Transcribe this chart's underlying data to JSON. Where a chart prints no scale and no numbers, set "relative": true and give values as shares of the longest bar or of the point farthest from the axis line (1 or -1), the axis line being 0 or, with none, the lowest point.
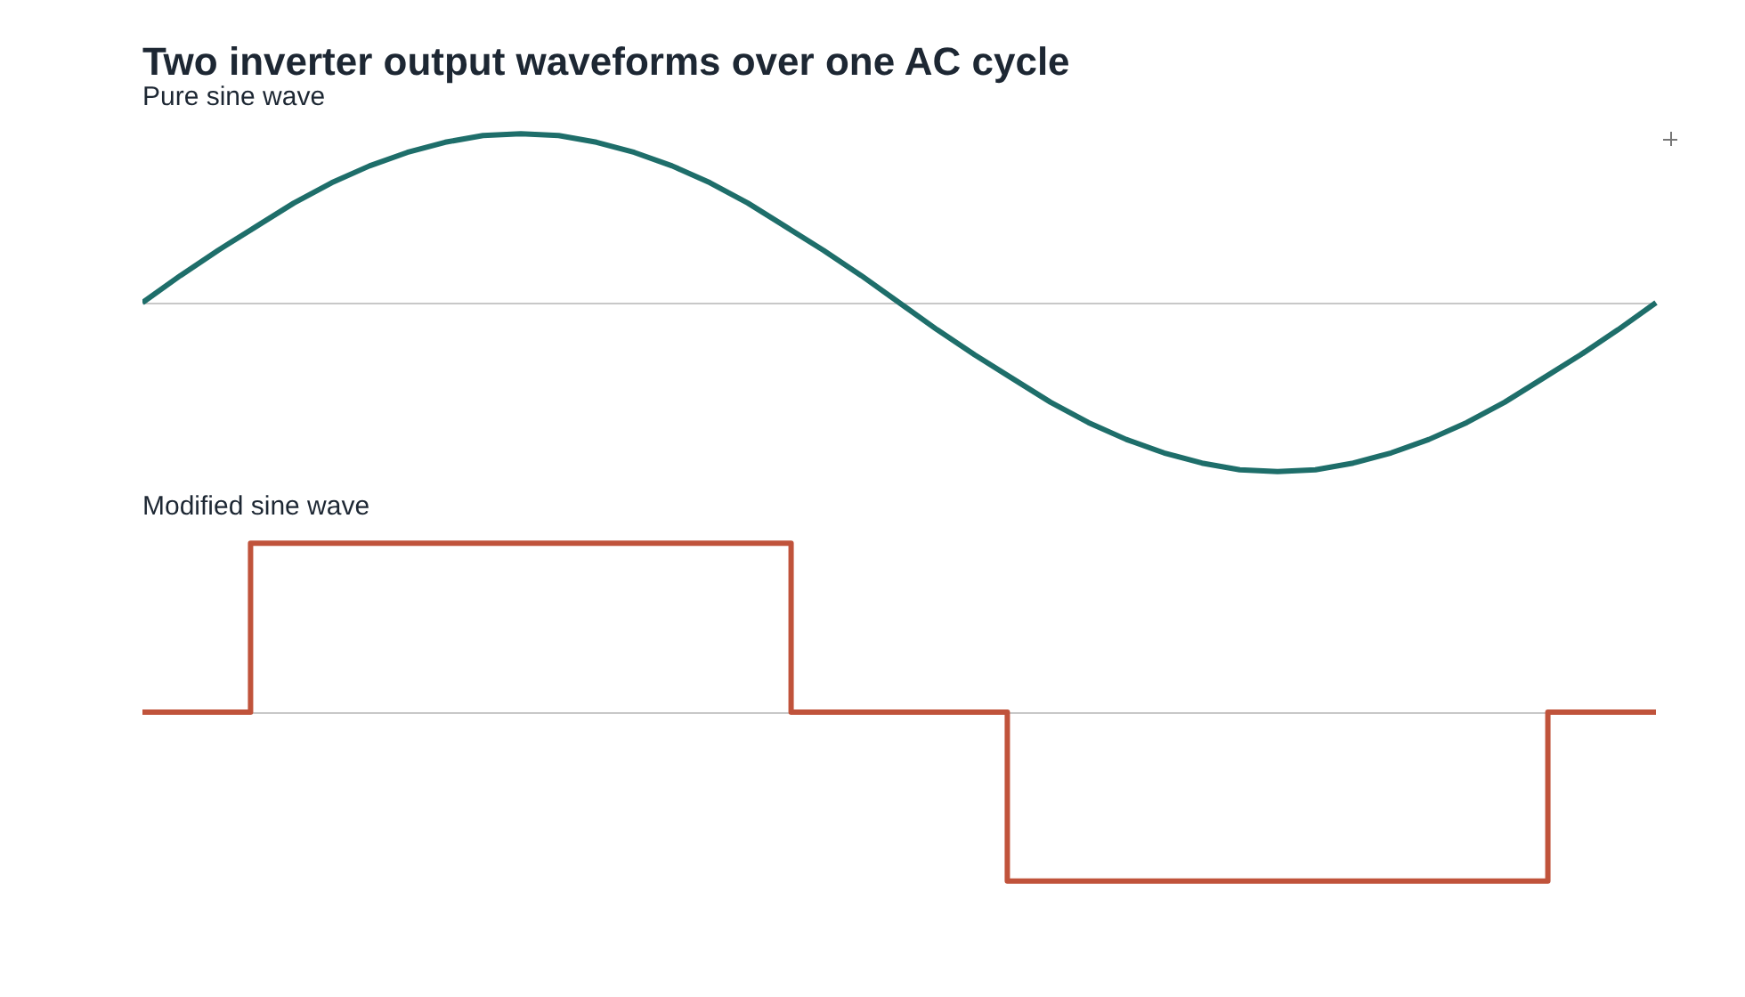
{
  "chart_data": [
    {
      "type": "line",
      "title": "Two inverter output waveforms over one AC cycle",
      "subtitle": "Pure sine wave",
      "relative": true,
      "legend": false,
      "marker": "none",
      "categories": [
        null,
        null,
        null,
        null,
        null,
        null,
        null,
        null,
        null,
        null,
        null,
        null,
        null,
        null,
        null,
        null,
        null,
        null,
        null,
        null,
        null,
        null,
        null,
        null,
        null,
        null,
        null,
        null,
        null,
        null,
        null,
        null,
        null,
        null,
        null,
        null,
        null,
        null,
        null,
        null,
        null
      ],
      "series": [
        {
          "color": "#1e6e6a",
          "values": [
            0,
            0.16,
            0.31,
            0.45,
            0.59,
            0.71,
            0.81,
            0.89,
            0.95,
            0.99,
            1,
            0.99,
            0.95,
            0.89,
            0.81,
            0.71,
            0.59,
            0.45,
            0.31,
            0.16,
            0,
            -0.16,
            -0.31,
            -0.45,
            -0.59,
            -0.71,
            -0.81,
            -0.89,
            -0.95,
            -0.99,
            -1,
            -0.99,
            -0.95,
            -0.89,
            -0.81,
            -0.71,
            -0.59,
            -0.45,
            -0.31,
            -0.16,
            0
          ]
        }
      ]
    },
    {
      "type": "step",
      "title": "Modified sine wave",
      "relative": true,
      "legend": false,
      "marker": "none",
      "categories": [
        null,
        null,
        null,
        null,
        null,
        null,
        null,
        null,
        null,
        null,
        null,
        null,
        null,
        null,
        null
      ],
      "series": [
        {
          "color": "#c0533b",
          "values": [
            0,
            1,
            1,
            1,
            1,
            1,
            0,
            0,
            -1,
            -1,
            -1,
            -1,
            -1,
            0,
            0
          ]
        }
      ]
    }
  ]
}
